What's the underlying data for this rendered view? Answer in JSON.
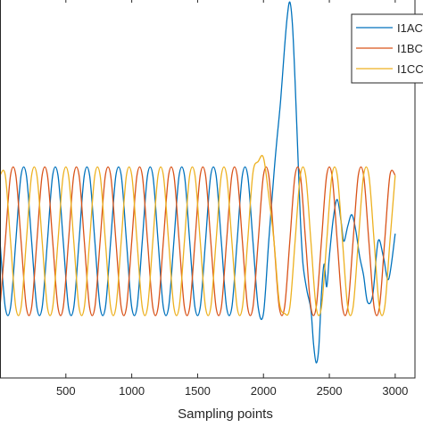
{
  "chart_data": {
    "type": "line",
    "title": "",
    "xlabel": "Sampling points",
    "ylabel": "",
    "xlim": [
      0,
      3150
    ],
    "ylim": [
      -1.8,
      3.2
    ],
    "x_ticks": [
      500,
      1000,
      1500,
      2000,
      2500,
      3000
    ],
    "x_tick_labels": [
      "500",
      "1000",
      "1500",
      "2000",
      "2500",
      "3000"
    ],
    "grid": false,
    "legend_position": "top-right",
    "series": [
      {
        "name": "I1AC",
        "color": "#0072BD",
        "x": [
          0,
          40,
          80,
          120,
          160,
          200,
          240,
          280,
          320,
          360,
          400,
          440,
          480,
          520,
          560,
          600,
          640,
          680,
          720,
          760,
          800,
          840,
          880,
          920,
          960,
          1000,
          1040,
          1080,
          1120,
          1160,
          1200,
          1240,
          1280,
          1320,
          1360,
          1400,
          1440,
          1480,
          1520,
          1560,
          1600,
          1640,
          1680,
          1720,
          1760,
          1800,
          1840,
          1880,
          1920,
          1960,
          2000,
          2040,
          2080,
          2100,
          2130,
          2160,
          2180,
          2200,
          2220,
          2240,
          2260,
          2280,
          2300,
          2330,
          2360,
          2380,
          2400,
          2420,
          2440,
          2460,
          2480,
          2500,
          2530,
          2560,
          2590,
          2610,
          2640,
          2670,
          2700,
          2730,
          2760,
          2790,
          2830,
          2870,
          2910,
          2950,
          3000
        ],
        "y": [
          0.0,
          -0.87,
          -0.87,
          0.0,
          0.87,
          0.87,
          0.0,
          -0.87,
          -0.87,
          0.0,
          0.87,
          0.87,
          0.0,
          -0.87,
          -0.87,
          0.0,
          0.87,
          0.87,
          0.0,
          -0.87,
          -0.87,
          0.0,
          0.87,
          0.87,
          0.0,
          -0.87,
          -0.87,
          0.0,
          0.87,
          0.87,
          0.0,
          -0.87,
          -0.87,
          0.0,
          0.87,
          0.87,
          0.0,
          -0.87,
          -0.87,
          0.0,
          0.87,
          0.87,
          0.0,
          -0.87,
          -0.87,
          0.0,
          0.87,
          0.87,
          0.0,
          -0.87,
          -0.95,
          0.0,
          0.9,
          1.3,
          1.85,
          2.55,
          2.95,
          3.15,
          2.85,
          2.1,
          1.2,
          0.3,
          -0.3,
          -0.65,
          -0.9,
          -1.35,
          -1.6,
          -1.4,
          -0.7,
          -0.3,
          -0.6,
          -0.2,
          0.3,
          0.55,
          0.25,
          0.0,
          0.2,
          0.35,
          0.15,
          -0.2,
          -0.45,
          -0.8,
          -0.7,
          0.0,
          -0.2,
          -0.5,
          0.1
        ]
      },
      {
        "name": "I1BC",
        "color": "#D95319",
        "x": [
          0,
          40,
          80,
          120,
          160,
          200,
          240,
          280,
          320,
          360,
          400,
          440,
          480,
          520,
          560,
          600,
          640,
          680,
          720,
          760,
          800,
          840,
          880,
          920,
          960,
          1000,
          1040,
          1080,
          1120,
          1160,
          1200,
          1240,
          1280,
          1320,
          1360,
          1400,
          1440,
          1480,
          1520,
          1560,
          1600,
          1640,
          1680,
          1720,
          1760,
          1800,
          1840,
          1880,
          1920,
          1960,
          2000,
          2040,
          2080,
          2120,
          2160,
          2200,
          2240,
          2280,
          2320,
          2360,
          2400,
          2440,
          2480,
          2520,
          2560,
          2600,
          2640,
          2680,
          2720,
          2760,
          2800,
          2840,
          2880,
          2920,
          2960,
          3000
        ],
        "y": [
          -0.87,
          0.0,
          0.87,
          0.87,
          0.0,
          -0.87,
          -0.87,
          0.0,
          0.87,
          0.87,
          0.0,
          -0.87,
          -0.87,
          0.0,
          0.87,
          0.87,
          0.0,
          -0.87,
          -0.87,
          0.0,
          0.87,
          0.87,
          0.0,
          -0.87,
          -0.87,
          0.0,
          0.87,
          0.87,
          0.0,
          -0.87,
          -0.87,
          0.0,
          0.87,
          0.87,
          0.0,
          -0.87,
          -0.87,
          0.0,
          0.87,
          0.87,
          0.0,
          -0.87,
          -0.87,
          0.0,
          0.87,
          0.87,
          0.0,
          -0.87,
          -0.87,
          0.0,
          0.87,
          0.87,
          0.0,
          -0.87,
          -0.87,
          0.0,
          0.87,
          0.87,
          0.0,
          -0.87,
          -0.87,
          0.0,
          0.87,
          0.87,
          0.0,
          -0.87,
          -0.87,
          0.0,
          0.87,
          0.87,
          0.0,
          -0.87,
          -0.87,
          0.0,
          0.87,
          0.87
        ]
      },
      {
        "name": "I1CC",
        "color": "#EDB120",
        "x": [
          0,
          40,
          80,
          120,
          160,
          200,
          240,
          280,
          320,
          360,
          400,
          440,
          480,
          520,
          560,
          600,
          640,
          680,
          720,
          760,
          800,
          840,
          880,
          920,
          960,
          1000,
          1040,
          1080,
          1120,
          1160,
          1200,
          1240,
          1280,
          1320,
          1360,
          1400,
          1440,
          1480,
          1520,
          1560,
          1600,
          1640,
          1680,
          1720,
          1760,
          1800,
          1840,
          1880,
          1920,
          1960,
          2000,
          2040,
          2080,
          2120,
          2160,
          2200,
          2240,
          2280,
          2320,
          2360,
          2400,
          2440,
          2480,
          2520,
          2560,
          2600,
          2640,
          2680,
          2720,
          2760,
          2800,
          2840,
          2880,
          2920,
          2960,
          3000
        ],
        "y": [
          0.87,
          0.87,
          0.0,
          -0.87,
          -0.87,
          0.0,
          0.87,
          0.87,
          0.0,
          -0.87,
          -0.87,
          0.0,
          0.87,
          0.87,
          0.0,
          -0.87,
          -0.87,
          0.0,
          0.87,
          0.87,
          0.0,
          -0.87,
          -0.87,
          0.0,
          0.87,
          0.87,
          0.0,
          -0.87,
          -0.87,
          0.0,
          0.87,
          0.87,
          0.0,
          -0.87,
          -0.87,
          0.0,
          0.87,
          0.87,
          0.0,
          -0.87,
          -0.87,
          0.0,
          0.87,
          0.87,
          0.0,
          -0.87,
          -0.87,
          0.0,
          0.9,
          1.05,
          1.1,
          0.6,
          0.0,
          -0.8,
          -0.95,
          -0.87,
          0.0,
          0.87,
          0.87,
          0.0,
          -0.87,
          -0.87,
          0.0,
          0.87,
          0.87,
          0.0,
          -0.87,
          -0.87,
          0.0,
          0.87,
          0.87,
          0.0,
          -0.87,
          -0.87,
          0.0,
          0.87
        ]
      }
    ]
  }
}
